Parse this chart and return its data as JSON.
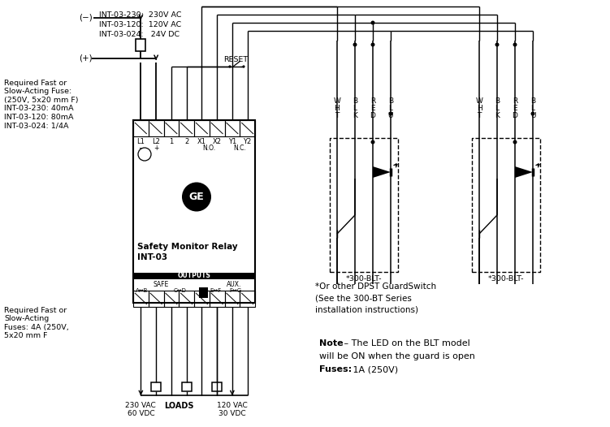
{
  "bg": "#ffffff",
  "fw": 7.51,
  "fh": 5.26,
  "minus_lbl": "(−)",
  "plus_lbl": "(+)",
  "top_v_lines": [
    "INT-03-230:  230V AC",
    "INT-03-120:  120V AC",
    "INT-03-024:   24V DC"
  ],
  "fuse_top": "Required Fast or\nSlow-Acting Fuse:\n(250V, 5x20 mm F)\nINT-03-230: 40mA\nINT-03-120: 80mA\nINT-03-024: 1/4A",
  "fuse_bot": "Required Fast or\nSlow-Acting\nFuses: 4A (250V,\n5x20 mm F",
  "relay_line1": "Safety Monitor Relay",
  "relay_line2": "INT-03",
  "outputs": "OUTPUTS",
  "safe": "SAFE",
  "aux": "AUX.",
  "term_top": [
    "L1",
    "L2",
    "1",
    "2",
    "X1",
    "X2",
    "Y1",
    "Y2"
  ],
  "no_lbl": "N.O.",
  "nc_lbl": "N.C.",
  "minus_sym": "−",
  "plus_sym": "+",
  "switch_lbl": "*300-BLT-",
  "note1_line1": "*Or other DPST GuardSwitch",
  "note1_line2": "(See the 300-BT Series",
  "note1_line3": "installation instructions)",
  "note2a": "Note",
  "note2b": " – The LED on the BLT model",
  "note2c": "will be ON when the guard is open",
  "fuses_bold": "Fuses:",
  "fuses_val": " 1A (250V)",
  "vac230": "230 VAC\n60 VDC",
  "loads": "LOADS",
  "vac120": "120 VAC\n30 VDC",
  "reset": "RESET"
}
